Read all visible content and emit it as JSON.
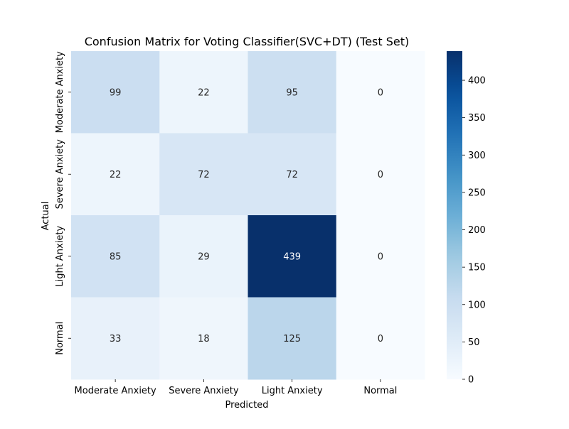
{
  "chart_data": {
    "type": "heatmap",
    "title": "Confusion Matrix for Voting Classifier(SVC+DT) (Test Set)",
    "xlabel": "Predicted",
    "ylabel": "Actual",
    "x_categories": [
      "Moderate Anxiety",
      "Severe Anxiety",
      "Light Anxiety",
      "Normal"
    ],
    "y_categories": [
      "Moderate Anxiety",
      "Severe Anxiety",
      "Light Anxiety",
      "Normal"
    ],
    "values": [
      [
        99,
        22,
        95,
        0
      ],
      [
        22,
        72,
        72,
        0
      ],
      [
        85,
        29,
        439,
        0
      ],
      [
        33,
        18,
        125,
        0
      ]
    ],
    "colorbar": {
      "min": 0,
      "max": 439,
      "ticks": [
        0,
        50,
        100,
        150,
        200,
        250,
        300,
        350,
        400
      ],
      "colormap": "Blues"
    },
    "annotations": true
  }
}
